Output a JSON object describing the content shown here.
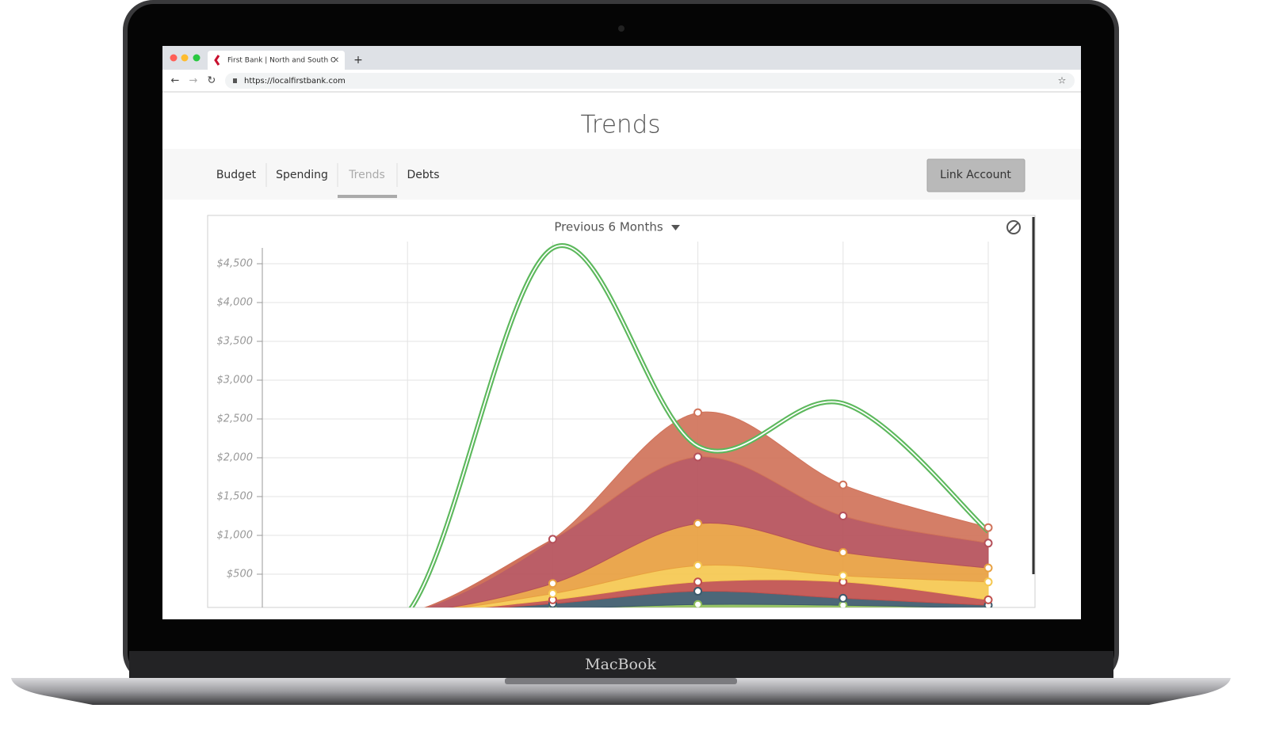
{
  "device": "MacBook",
  "browser": {
    "tab_title": "First Bank | North and South C",
    "url": "https://localfirstbank.com"
  },
  "page": {
    "title": "Trends",
    "tabs": [
      "Budget",
      "Spending",
      "Trends",
      "Debts"
    ],
    "active_tab": 2,
    "button": "Link Account",
    "filter": "Previous 6 Months"
  },
  "chart_data": {
    "type": "area",
    "stacked": true,
    "grid": true,
    "categories": [
      null,
      null,
      null,
      null,
      null,
      null
    ],
    "ylim": [
      0,
      4800
    ],
    "yticks": [
      {
        "value": 500,
        "label": "$500"
      },
      {
        "value": 1000,
        "label": "$1,000"
      },
      {
        "value": 1500,
        "label": "$1,500"
      },
      {
        "value": 2000,
        "label": "$2,000"
      },
      {
        "value": 2500,
        "label": "$2,500"
      },
      {
        "value": 3000,
        "label": "$3,000"
      },
      {
        "value": 3500,
        "label": "$3,500"
      },
      {
        "value": 4000,
        "label": "$4,000"
      },
      {
        "value": 4500,
        "label": "$4,500"
      }
    ],
    "series": [
      {
        "color": "#8fbf5a",
        "values": [
          0,
          0,
          50,
          110,
          100,
          60
        ]
      },
      {
        "color": "#3d5a6c",
        "values": [
          0,
          0,
          70,
          170,
          90,
          40
        ]
      },
      {
        "color": "#c0504d",
        "values": [
          0,
          0,
          50,
          120,
          210,
          70
        ]
      },
      {
        "color": "#f5c850",
        "values": [
          0,
          0,
          80,
          210,
          80,
          230
        ]
      },
      {
        "color": "#e8a040",
        "values": [
          0,
          0,
          130,
          540,
          300,
          180
        ]
      },
      {
        "color": "#b5505a",
        "values": [
          0,
          0,
          570,
          860,
          470,
          320
        ]
      },
      {
        "color": "#d0735a",
        "values": [
          0,
          0,
          0,
          570,
          400,
          200
        ]
      },
      {
        "type": "line",
        "color": "#5cb85c",
        "values": [
          0,
          0,
          4700,
          2150,
          2700,
          1050
        ]
      }
    ]
  }
}
